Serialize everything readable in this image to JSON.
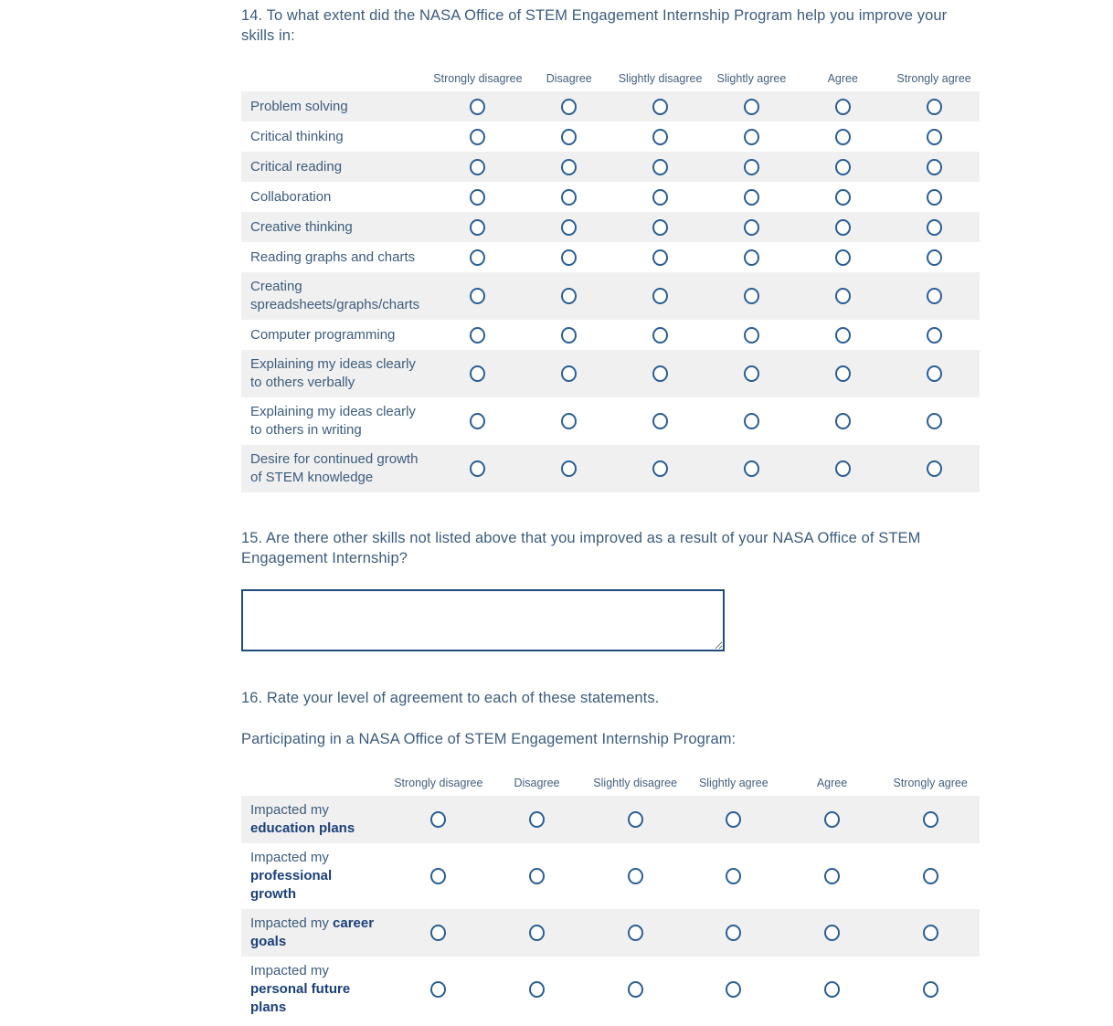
{
  "colors": {
    "text": "#3d5c7c",
    "bold_text": "#1b4078",
    "header_text": "#44607d",
    "radio_border": "#2a5e94",
    "row_stripe": "#f0f0f0",
    "textarea_border": "#1e4b7a",
    "background": "#ffffff"
  },
  "q14": {
    "title": "14. To what extent did the NASA Office of STEM Engagement Internship Program help you improve your skills in:",
    "columns": [
      "Strongly disagree",
      "Disagree",
      "Slightly disagree",
      "Slightly agree",
      "Agree",
      "Strongly agree"
    ],
    "rows": [
      "Problem solving",
      "Critical thinking",
      "Critical reading",
      "Collaboration",
      "Creative thinking",
      "Reading graphs and charts",
      "Creating spreadsheets/graphs/charts",
      "Computer programming",
      "Explaining my ideas clearly to others verbally",
      "Explaining my ideas clearly to others in writing",
      "Desire for continued growth of STEM knowledge"
    ]
  },
  "q15": {
    "title": "15. Are there other skills not listed above that you improved as a result of your NASA Office of STEM Engagement Internship?",
    "value": ""
  },
  "q16": {
    "title": "16. Rate your level of agreement to each of these statements.",
    "intro": "Participating in a NASA Office of STEM Engagement Internship Program:",
    "columns": [
      "Strongly disagree",
      "Disagree",
      "Slightly disagree",
      "Slightly agree",
      "Agree",
      "Strongly agree"
    ],
    "rows": [
      {
        "normal": "Impacted my ",
        "bold": "education plans"
      },
      {
        "normal": "Impacted my ",
        "bold": "professional growth"
      },
      {
        "normal": "Impacted my ",
        "bold": "career goals"
      },
      {
        "normal": "Impacted my ",
        "bold": "personal future plans"
      }
    ]
  }
}
